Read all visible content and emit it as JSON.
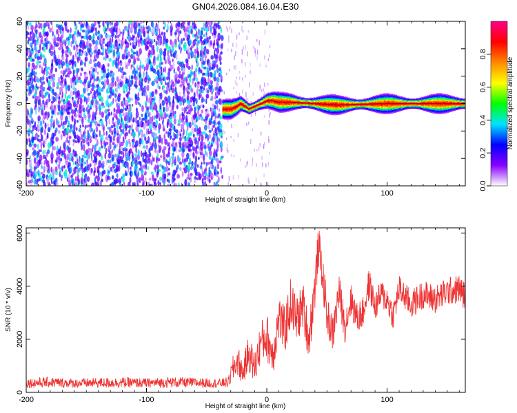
{
  "figure_title": "GN04.2026.084.16.04.E30",
  "colorbar_label": "Normalized spectral amplitude",
  "chart_data": [
    {
      "type": "heatmap",
      "title": "GN04.2026.084.16.04.E30",
      "xlabel": "Height of straight line (km)",
      "ylabel": "Frequency (Hz)",
      "xlim": [
        -200,
        165
      ],
      "ylim": [
        -60,
        60
      ],
      "x_ticks": [
        -200,
        -100,
        0,
        100
      ],
      "y_ticks": [
        -60,
        -40,
        -20,
        0,
        20,
        40,
        60
      ],
      "x_tick_labels": [
        "-200",
        "-100",
        "0",
        "100"
      ],
      "y_tick_labels": [
        "-60",
        "-40",
        "-20",
        "0",
        "20",
        "40",
        "60"
      ],
      "colorbar": {
        "label": "Normalized spectral amplitude",
        "range": [
          0.0,
          1.0
        ],
        "ticks": [
          0.0,
          0.2,
          0.4,
          0.6,
          0.8
        ],
        "tick_labels": [
          "0.0",
          "0.2",
          "0.4",
          "0.6",
          "0.8"
        ],
        "colormap": [
          "#ffffff",
          "#8800ff",
          "#0000ff",
          "#00e5ff",
          "#00ff00",
          "#ffff00",
          "#ff8800",
          "#ff0000",
          "#ff0088"
        ]
      },
      "regions": {
        "noise_x_range": [
          -200,
          -37
        ],
        "noise_amplitude_range": [
          0.05,
          0.3
        ],
        "signal_start_x": -37,
        "signal_ridge": {
          "x": [
            -37,
            -30,
            -25,
            -22,
            -18,
            -15,
            -10,
            -5,
            0,
            5,
            10,
            20,
            40,
            60,
            100,
            165
          ],
          "freq_hz": [
            -4,
            -4,
            -2,
            0,
            -2,
            -4,
            -2,
            0,
            2,
            2,
            1,
            1,
            0,
            -1,
            0,
            0
          ]
        },
        "ridge_amplitude": 0.95
      }
    },
    {
      "type": "line",
      "xlabel": "Height of straight line (km)",
      "ylabel": "SNR (10 * v/v)",
      "xlim": [
        -200,
        165
      ],
      "ylim": [
        0,
        6200
      ],
      "x_ticks": [
        -200,
        -100,
        0,
        100
      ],
      "y_ticks": [
        0,
        2000,
        4000,
        6000
      ],
      "x_tick_labels": [
        "-200",
        "-100",
        "0",
        "100"
      ],
      "y_tick_labels": [
        "0",
        "2000",
        "4000",
        "6000"
      ],
      "color": "#ee3333",
      "series": [
        {
          "x": [
            -200,
            -180,
            -160,
            -140,
            -120,
            -100,
            -80,
            -60,
            -40,
            -32,
            -28,
            -24,
            -20,
            -15,
            -10,
            -5,
            0,
            5,
            10,
            15,
            20,
            25,
            30,
            35,
            40,
            43,
            46,
            50,
            55,
            60,
            65,
            70,
            75,
            80,
            85,
            90,
            95,
            100,
            105,
            110,
            120,
            130,
            140,
            150,
            160,
            165
          ],
          "values": [
            350,
            380,
            340,
            360,
            370,
            350,
            380,
            360,
            340,
            380,
            900,
            1200,
            700,
            1500,
            900,
            1900,
            2100,
            1400,
            2800,
            2300,
            3400,
            2700,
            3300,
            2000,
            4000,
            5500,
            4600,
            2900,
            2200,
            3800,
            2500,
            3500,
            2800,
            3000,
            4100,
            3200,
            3700,
            3500,
            2900,
            3900,
            3300,
            3700,
            3500,
            3800,
            3900,
            3600
          ],
          "band_half_width": [
            180,
            200,
            170,
            190,
            200,
            180,
            200,
            190,
            170,
            200,
            500,
            600,
            450,
            700,
            650,
            800,
            900,
            800,
            900,
            900,
            950,
            900,
            900,
            850,
            900,
            800,
            800,
            750,
            700,
            700,
            650,
            650,
            600,
            600,
            600,
            550,
            550,
            550,
            550,
            550,
            550,
            550,
            550,
            550,
            550,
            550
          ]
        }
      ]
    }
  ]
}
